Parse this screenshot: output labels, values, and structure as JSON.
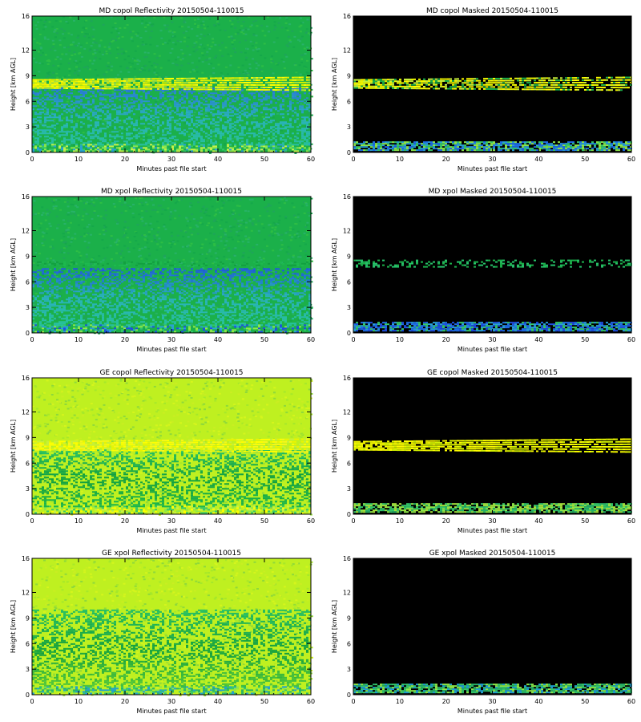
{
  "chart_data": [
    {
      "type": "heatmap",
      "title": "MD copol Reflectivity 20150504-110015",
      "xlabel": "Minutes past file start",
      "ylabel": "Height [km AGL]",
      "xlim": [
        0,
        60
      ],
      "ylim": [
        0,
        16
      ],
      "x_ticks": [
        0,
        10,
        20,
        30,
        40,
        50,
        60
      ],
      "y_ticks": [
        0,
        3,
        6,
        9,
        12,
        16
      ],
      "style": "field",
      "background": "#1bb04a",
      "noise": [
        "#15a84a",
        "#2dbd45",
        "#27b268",
        "#1ea55a"
      ],
      "layers": [
        {
          "y_from": 0.2,
          "y_to": 1.0,
          "colors": [
            "#8ee84a",
            "#c7f24a",
            "#35c86a",
            "#29a0d8"
          ],
          "density": 0.55
        },
        {
          "y_from": 1.0,
          "y_to": 7.6,
          "gradient": [
            "#2a6ee0",
            "#2ab0c0",
            "#27c39a"
          ],
          "density": 0.4
        },
        {
          "y_from": 7.6,
          "y_to": 8.6,
          "x_from": 0,
          "x_to": 60,
          "colors": [
            "#ffff00",
            "#f2f000",
            "#d4f100",
            "#a8e33c"
          ],
          "density": 0.85,
          "thicken": 1.6
        }
      ]
    },
    {
      "type": "heatmap",
      "title": "MD copol Masked 20150504-110015",
      "xlabel": "Minutes past file start",
      "ylabel": "Height [km AGL]",
      "xlim": [
        0,
        60
      ],
      "ylim": [
        0,
        16
      ],
      "x_ticks": [
        0,
        10,
        20,
        30,
        40,
        50,
        60
      ],
      "y_ticks": [
        0,
        3,
        6,
        9,
        12,
        16
      ],
      "style": "masked",
      "background": "#000000",
      "layers": [
        {
          "y_from": 0.2,
          "y_to": 1.3,
          "colors": [
            "#35c86a",
            "#1f6ee8",
            "#8ee84a",
            "#29a0d8"
          ],
          "density": 0.8
        },
        {
          "y_from": 7.6,
          "y_to": 8.6,
          "x_from": 0,
          "x_to": 60,
          "colors": [
            "#ffff00",
            "#e8f300",
            "#c8f03a",
            "#1bb04a"
          ],
          "density": 0.85,
          "thicken": 1.6
        }
      ]
    },
    {
      "type": "heatmap",
      "title": "MD xpol Reflectivity 20150504-110015",
      "xlabel": "Minutes past file start",
      "ylabel": "Height [km AGL]",
      "xlim": [
        0,
        60
      ],
      "ylim": [
        0,
        16
      ],
      "x_ticks": [
        0,
        10,
        20,
        30,
        40,
        50,
        60
      ],
      "y_ticks": [
        0,
        3,
        6,
        9,
        12,
        16
      ],
      "style": "field",
      "background": "#1bb04a",
      "noise": [
        "#15a84a",
        "#2dbd45",
        "#27b268",
        "#1ea55a"
      ],
      "layers": [
        {
          "y_from": 0.2,
          "y_to": 1.0,
          "colors": [
            "#35c86a",
            "#1f4fe0",
            "#29a0d8",
            "#8ee84a"
          ],
          "density": 0.55
        },
        {
          "y_from": 1.0,
          "y_to": 7.6,
          "gradient": [
            "#1f4fe0",
            "#2ab0c0",
            "#27c39a"
          ],
          "density": 0.4
        },
        {
          "y_from": 8.0,
          "y_to": 8.4,
          "colors": [
            "#12a040",
            "#1db94e"
          ],
          "density": 0.35
        }
      ]
    },
    {
      "type": "heatmap",
      "title": "MD xpol Masked 20150504-110015",
      "xlabel": "Minutes past file start",
      "ylabel": "Height [km AGL]",
      "xlim": [
        0,
        60
      ],
      "ylim": [
        0,
        16
      ],
      "x_ticks": [
        0,
        10,
        20,
        30,
        40,
        50,
        60
      ],
      "y_ticks": [
        0,
        3,
        6,
        9,
        12,
        16
      ],
      "style": "masked",
      "background": "#000000",
      "layers": [
        {
          "y_from": 0.2,
          "y_to": 1.3,
          "colors": [
            "#1f4fe0",
            "#29a0d8",
            "#35c86a",
            "#1f6ee8"
          ],
          "density": 0.8
        },
        {
          "y_from": 7.8,
          "y_to": 8.6,
          "x_from": 0,
          "x_to": 60,
          "colors": [
            "#1bb04a",
            "#27c36a"
          ],
          "density": 0.35
        }
      ]
    },
    {
      "type": "heatmap",
      "title": "GE copol Reflectivity 20150504-110015",
      "xlabel": "Minutes past file start",
      "ylabel": "Height [km AGL]",
      "xlim": [
        0,
        60
      ],
      "ylim": [
        0,
        16
      ],
      "x_ticks": [
        0,
        10,
        20,
        30,
        40,
        50,
        60
      ],
      "y_ticks": [
        0,
        3,
        6,
        9,
        12,
        16
      ],
      "style": "field",
      "background": "#bff020",
      "noise": [
        "#a6e82a",
        "#d4f51d",
        "#8fd93a",
        "#c9ee22"
      ],
      "layers": [
        {
          "y_from": 0.2,
          "y_to": 1.0,
          "colors": [
            "#ffff00",
            "#c7f24a",
            "#35c86a",
            "#8ee84a"
          ],
          "density": 0.55
        },
        {
          "y_from": 1.0,
          "y_to": 7.6,
          "gradient": [
            "#27c36a",
            "#12a040",
            "#1db94e"
          ],
          "density": 0.4
        },
        {
          "y_from": 7.6,
          "y_to": 8.6,
          "x_from": 0,
          "x_to": 60,
          "colors": [
            "#ffff00",
            "#f7f71a",
            "#eaf500",
            "#c8f03a"
          ],
          "density": 0.85,
          "thicken": 1.6
        }
      ]
    },
    {
      "type": "heatmap",
      "title": "GE copol Masked 20150504-110015",
      "xlabel": "Minutes past file start",
      "ylabel": "Height [km AGL]",
      "xlim": [
        0,
        60
      ],
      "ylim": [
        0,
        16
      ],
      "x_ticks": [
        0,
        10,
        20,
        30,
        40,
        50,
        60
      ],
      "y_ticks": [
        0,
        3,
        6,
        9,
        12,
        16
      ],
      "style": "masked",
      "background": "#000000",
      "layers": [
        {
          "y_from": 0.2,
          "y_to": 1.3,
          "colors": [
            "#35c86a",
            "#8ee84a",
            "#27b268",
            "#a8e33c"
          ],
          "density": 0.8
        },
        {
          "y_from": 7.6,
          "y_to": 8.6,
          "x_from": 0,
          "x_to": 60,
          "colors": [
            "#ffff00",
            "#eef500",
            "#d4f100"
          ],
          "density": 0.85,
          "thicken": 1.6
        }
      ]
    },
    {
      "type": "heatmap",
      "title": "GE xpol Reflectivity 20150504-110015",
      "xlabel": "Minutes past file start",
      "ylabel": "Height [km AGL]",
      "xlim": [
        0,
        60
      ],
      "ylim": [
        0,
        16
      ],
      "x_ticks": [
        0,
        10,
        20,
        30,
        40,
        50,
        60
      ],
      "y_ticks": [
        0,
        3,
        6,
        9,
        12,
        16
      ],
      "style": "field",
      "background": "#bff020",
      "noise": [
        "#a6e82a",
        "#d4f51d",
        "#8fd93a",
        "#c9ee22"
      ],
      "layers": [
        {
          "y_from": 0.2,
          "y_to": 1.0,
          "colors": [
            "#35c86a",
            "#1f9fd0",
            "#8ee84a",
            "#27b268"
          ],
          "density": 0.55
        },
        {
          "y_from": 1.0,
          "y_to": 10.0,
          "gradient": [
            "#27c36a",
            "#12a040",
            "#59cc3a"
          ],
          "density": 0.4
        }
      ]
    },
    {
      "type": "heatmap",
      "title": "GE xpol Masked 20150504-110015",
      "xlabel": "Minutes past file start",
      "ylabel": "Height [km AGL]",
      "xlim": [
        0,
        60
      ],
      "ylim": [
        0,
        16
      ],
      "x_ticks": [
        0,
        10,
        20,
        30,
        40,
        50,
        60
      ],
      "y_ticks": [
        0,
        3,
        6,
        9,
        12,
        16
      ],
      "style": "masked",
      "background": "#000000",
      "layers": [
        {
          "y_from": 0.2,
          "y_to": 1.3,
          "colors": [
            "#35c86a",
            "#27b268",
            "#8ee84a",
            "#1f9fd0"
          ],
          "density": 0.8
        }
      ]
    }
  ]
}
